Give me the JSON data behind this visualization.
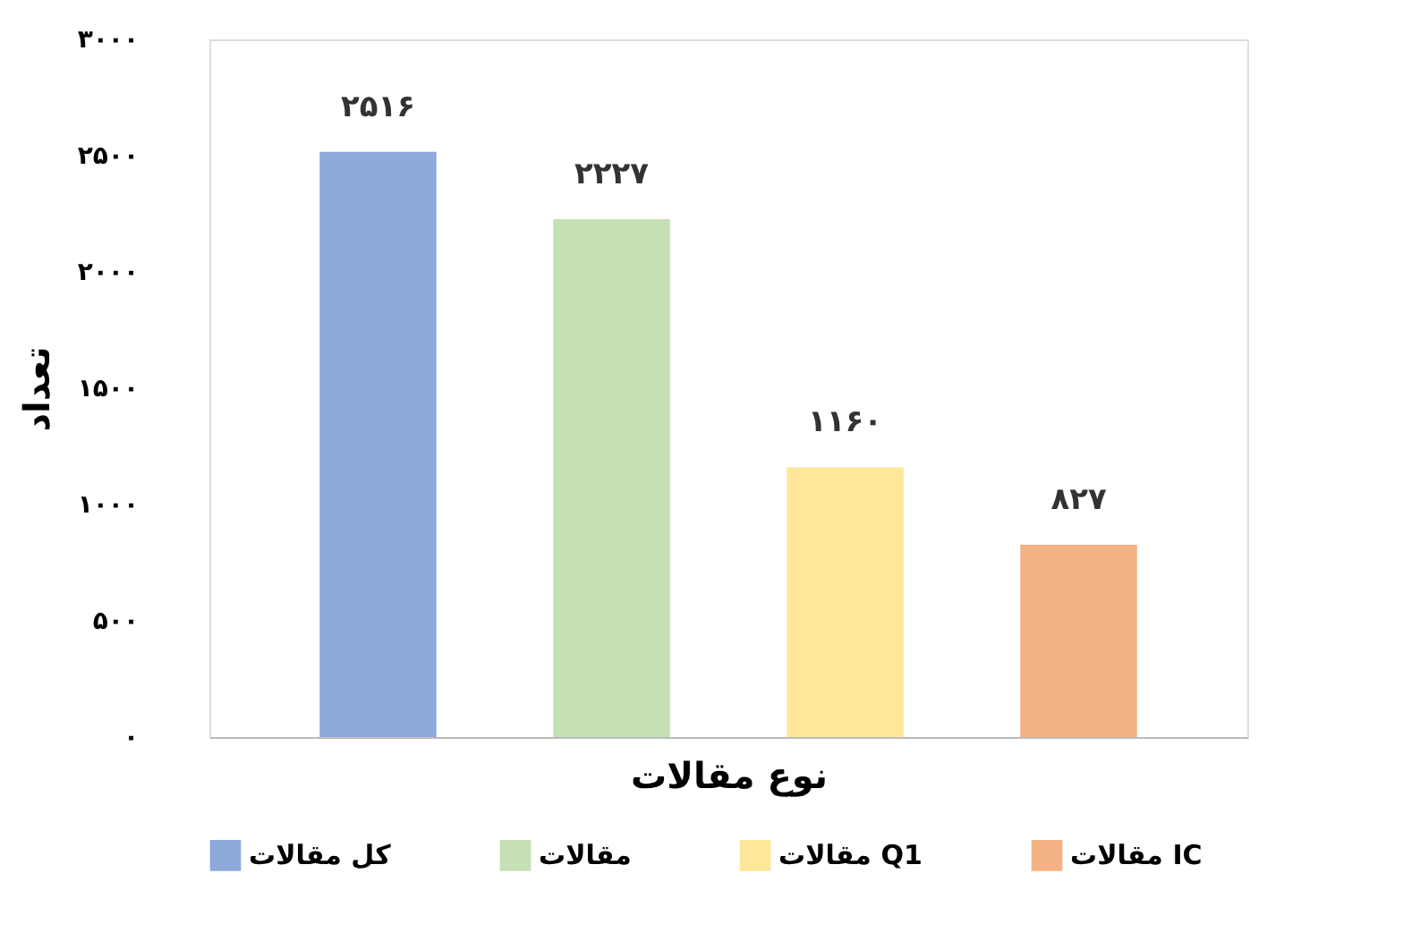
{
  "chart_data": {
    "type": "bar",
    "xlabel": "نوع مقالات",
    "ylabel": "تعداد",
    "categories": [
      null
    ],
    "series": [
      {
        "name": "کل مقالات",
        "color": "#8eaadb",
        "values": [
          2516
        ],
        "value_labels": [
          "۲۵۱۶"
        ]
      },
      {
        "name": "مقالات",
        "color": "#c5e0b4",
        "values": [
          2227
        ],
        "value_labels": [
          "۲۲۲۷"
        ]
      },
      {
        "name": "مقالات Q1",
        "color": "#ffe699",
        "values": [
          1160
        ],
        "value_labels": [
          "۱۱۶۰"
        ]
      },
      {
        "name": "مقالات IC",
        "color": "#f4b183",
        "values": [
          827
        ],
        "value_labels": [
          "۸۲۷"
        ]
      }
    ],
    "ylim": [
      0,
      3000
    ],
    "yticks": [
      {
        "value": 0,
        "label": "۰"
      },
      {
        "value": 500,
        "label": "۵۰۰"
      },
      {
        "value": 1000,
        "label": "۱۰۰۰"
      },
      {
        "value": 1500,
        "label": "۱۵۰۰"
      },
      {
        "value": 2000,
        "label": "۲۰۰۰"
      },
      {
        "value": 2500,
        "label": "۲۵۰۰"
      },
      {
        "value": 3000,
        "label": "۳۰۰۰"
      }
    ],
    "grid": false,
    "legend": "bottom",
    "tick_labels": "y"
  }
}
